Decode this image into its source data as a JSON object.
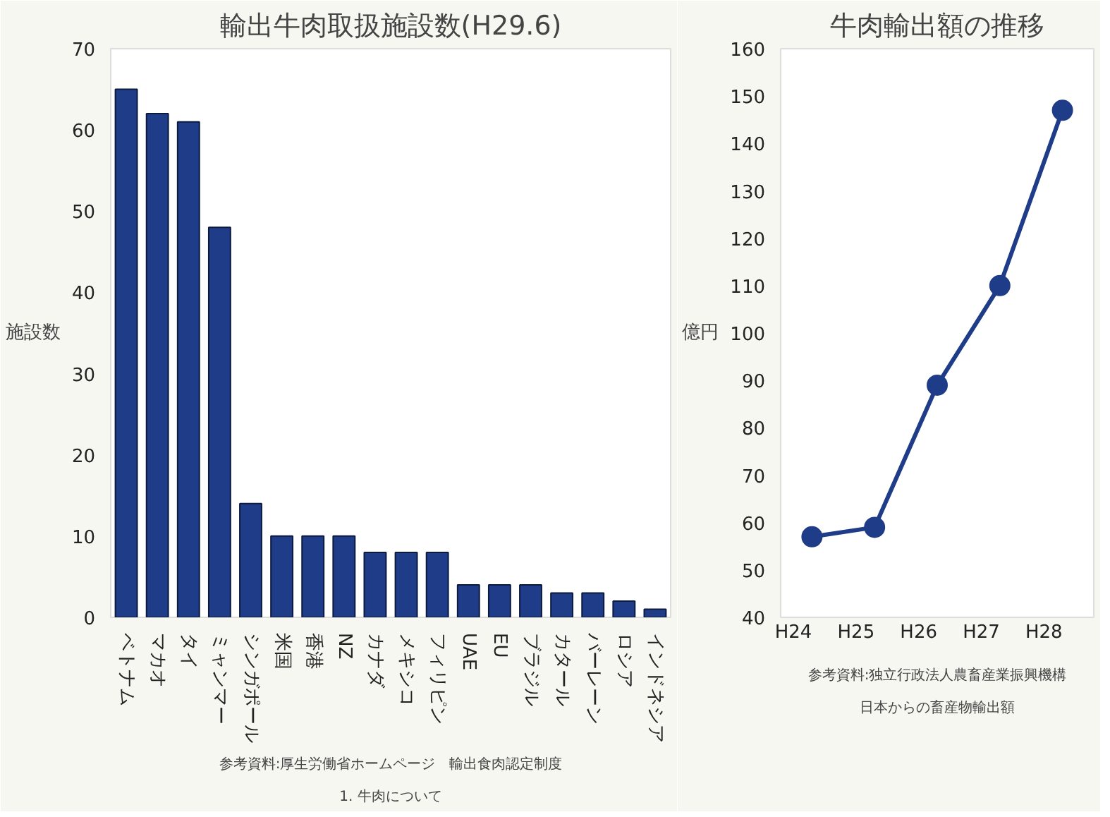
{
  "chart_data": [
    {
      "type": "bar",
      "title": "輸出牛肉取扱施設数(H29.6)",
      "ylabel": "施設数",
      "categories": [
        "ベトナム",
        "マカオ",
        "タイ",
        "ミャンマー",
        "シンガポール",
        "米国",
        "香港",
        "NZ",
        "カナダ",
        "メキシコ",
        "フィリピン",
        "UAE",
        "EU",
        "ブラジル",
        "カタール",
        "バーレーン",
        "ロシア",
        "インドネシア"
      ],
      "values": [
        65,
        62,
        61,
        48,
        14,
        10,
        10,
        10,
        8,
        8,
        8,
        4,
        4,
        4,
        3,
        3,
        2,
        1
      ],
      "color": "#1f3c88",
      "ylim": [
        0,
        70
      ],
      "yticks": [
        0,
        10,
        20,
        30,
        40,
        50,
        60,
        70
      ],
      "grid": false,
      "annotations": [
        "参考資料:厚生労働省ホームページ　輸出食肉認定制度",
        "1. 牛肉について"
      ]
    },
    {
      "type": "line",
      "title": "牛肉輸出額の推移",
      "ylabel": "億円",
      "categories": [
        "H24",
        "H25",
        "H26",
        "H27",
        "H28"
      ],
      "values": [
        57,
        59,
        89,
        110,
        147
      ],
      "color": "#1f3c88",
      "marker": "circle",
      "ylim": [
        40,
        160
      ],
      "yticks": [
        40,
        50,
        60,
        70,
        80,
        90,
        100,
        110,
        120,
        130,
        140,
        150,
        160
      ],
      "grid": false,
      "annotations": [
        "参考資料:独立行政法人農畜産業振興機構",
        "日本からの畜産物輸出額"
      ]
    }
  ]
}
